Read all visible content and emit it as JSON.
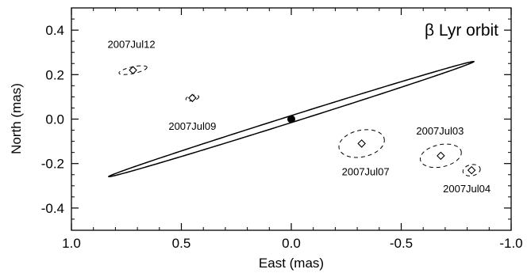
{
  "chart_data": {
    "type": "scatter",
    "title": "β Lyr orbit",
    "xlabel": "East (mas)",
    "ylabel": "North (mas)",
    "xlim": [
      1.0,
      -1.0
    ],
    "ylim": [
      -0.5,
      0.5
    ],
    "x_ticks": [
      1.0,
      0.5,
      0.0,
      -0.5,
      -1.0
    ],
    "x_tick_labels": [
      "1.0",
      "0.5",
      "0.0",
      "-0.5",
      "-1.0"
    ],
    "y_ticks": [
      0.4,
      0.2,
      0.0,
      -0.2,
      -0.4
    ],
    "y_tick_labels": [
      "0.4",
      "0.2",
      "0.0",
      "-0.2",
      "-0.4"
    ],
    "grid": false,
    "primary": {
      "x": 0.0,
      "y": 0.0
    },
    "orbit": {
      "center_x": 0.0,
      "center_y": 0.0,
      "semi_major": 0.87,
      "semi_minor": 0.015,
      "angle_deg": -17.3
    },
    "points": [
      {
        "label": "2007Jul12",
        "x": 0.72,
        "y": 0.22,
        "err_a": 0.065,
        "err_b": 0.015
      },
      {
        "label": "2007Jul09",
        "x": 0.45,
        "y": 0.095,
        "err_a": 0.03,
        "err_b": 0.012
      },
      {
        "label": "2007Jul07",
        "x": -0.32,
        "y": -0.11,
        "err_a": 0.105,
        "err_b": 0.06
      },
      {
        "label": "2007Jul03",
        "x": -0.68,
        "y": -0.165,
        "err_a": 0.095,
        "err_b": 0.05
      },
      {
        "label": "2007Jul04",
        "x": -0.82,
        "y": -0.23,
        "err_a": 0.04,
        "err_b": 0.025
      }
    ]
  }
}
